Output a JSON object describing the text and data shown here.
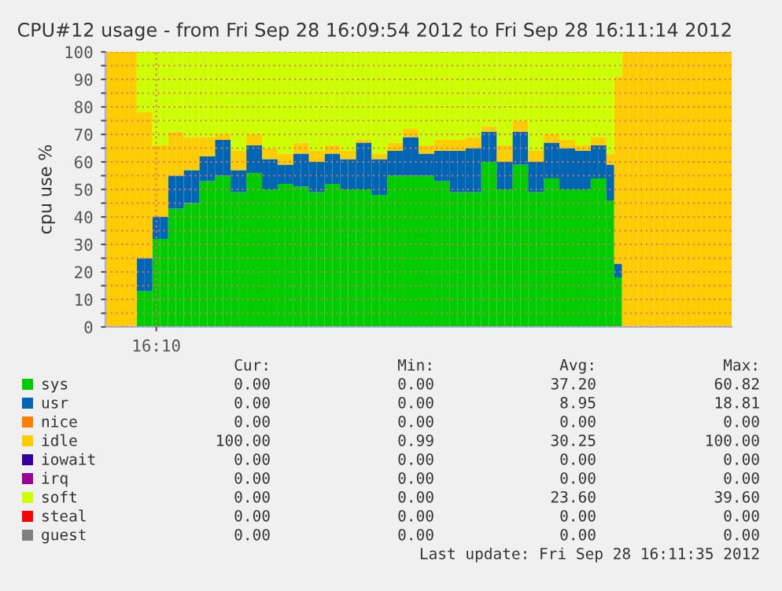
{
  "chart_data": {
    "type": "bar",
    "stacked": true,
    "title": "CPU#12 usage - from Fri Sep 28 16:09:54 2012 to Fri Sep 28 16:11:14 2012",
    "ylabel": "cpu use %",
    "categories": [
      null,
      null,
      null,
      null,
      null,
      null,
      "16:10",
      null,
      null,
      null,
      null,
      null,
      null,
      null,
      null,
      null,
      null,
      null,
      null,
      null,
      null,
      null,
      null,
      null,
      null,
      null,
      null,
      null,
      null,
      null,
      null,
      null,
      null,
      null,
      null,
      null,
      null,
      null,
      null,
      null,
      null,
      null,
      null,
      null,
      null,
      null,
      null,
      null,
      null,
      null,
      null,
      null,
      null,
      null,
      null,
      null,
      null,
      null,
      null,
      null,
      null,
      null,
      null,
      null,
      null,
      null,
      null,
      null,
      null,
      null,
      null,
      null,
      null,
      null,
      null,
      null,
      null,
      null,
      null,
      null
    ],
    "series": [
      {
        "name": "sys",
        "color": "#00cc00",
        "values": [
          0,
          0,
          0,
          0,
          13,
          13,
          32,
          32,
          43,
          43,
          45,
          45,
          53,
          53,
          55,
          55,
          49,
          49,
          56,
          56,
          50,
          50,
          52,
          52,
          51,
          51,
          49,
          49,
          52,
          52,
          50,
          50,
          50,
          50,
          48,
          48,
          55,
          55,
          55,
          55,
          55,
          55,
          53,
          53,
          49,
          49,
          49,
          49,
          60,
          60,
          50,
          50,
          59,
          59,
          49,
          49,
          54,
          54,
          50,
          50,
          50,
          50,
          54,
          54,
          46,
          18,
          0,
          0,
          0,
          0,
          0,
          0,
          0,
          0,
          0,
          0,
          0,
          0,
          0,
          0
        ]
      },
      {
        "name": "usr",
        "color": "#0066b3",
        "values": [
          0,
          0,
          0,
          0,
          12,
          12,
          8,
          8,
          12,
          12,
          12,
          12,
          9,
          9,
          13,
          13,
          8,
          8,
          10,
          10,
          11,
          11,
          7,
          7,
          12,
          12,
          11,
          11,
          11,
          11,
          11,
          11,
          17,
          17,
          13,
          13,
          9,
          9,
          14,
          14,
          8,
          8,
          11,
          11,
          15,
          15,
          16,
          16,
          11,
          11,
          10,
          10,
          12,
          12,
          11,
          11,
          13,
          13,
          15,
          15,
          14,
          14,
          12,
          12,
          13,
          5,
          0,
          0,
          0,
          0,
          0,
          0,
          0,
          0,
          0,
          0,
          0,
          0,
          0,
          0
        ]
      },
      {
        "name": "nice",
        "color": "#ff8000",
        "values": [
          0,
          0,
          0,
          0,
          0,
          0,
          0,
          0,
          0,
          0,
          0,
          0,
          0,
          0,
          0,
          0,
          0,
          0,
          0,
          0,
          0,
          0,
          0,
          0,
          0,
          0,
          0,
          0,
          0,
          0,
          0,
          0,
          0,
          0,
          0,
          0,
          0,
          0,
          0,
          0,
          0,
          0,
          0,
          0,
          0,
          0,
          0,
          0,
          0,
          0,
          0,
          0,
          0,
          0,
          0,
          0,
          0,
          0,
          0,
          0,
          0,
          0,
          0,
          0,
          0,
          0,
          0,
          0,
          0,
          0,
          0,
          0,
          0,
          0,
          0,
          0,
          0,
          0,
          0,
          0
        ]
      },
      {
        "name": "idle",
        "color": "#ffcc00",
        "values": [
          100,
          100,
          100,
          100,
          53,
          53,
          26,
          26,
          16,
          16,
          12,
          12,
          7,
          7,
          2,
          2,
          7,
          7,
          4,
          4,
          4,
          4,
          4,
          4,
          4,
          4,
          4,
          4,
          3,
          3,
          3,
          3,
          1,
          1,
          2,
          2,
          3,
          3,
          3,
          3,
          3,
          3,
          4,
          4,
          4,
          4,
          4,
          4,
          2,
          2,
          6,
          6,
          4,
          4,
          4,
          4,
          3,
          3,
          3,
          3,
          2,
          2,
          3,
          3,
          4,
          68,
          100,
          100,
          100,
          100,
          100,
          100,
          100,
          100,
          100,
          100,
          100,
          100,
          100,
          100
        ]
      },
      {
        "name": "iowait",
        "color": "#330099",
        "values": [
          0,
          0,
          0,
          0,
          0,
          0,
          0,
          0,
          0,
          0,
          0,
          0,
          0,
          0,
          0,
          0,
          0,
          0,
          0,
          0,
          0,
          0,
          0,
          0,
          0,
          0,
          0,
          0,
          0,
          0,
          0,
          0,
          0,
          0,
          0,
          0,
          0,
          0,
          0,
          0,
          0,
          0,
          0,
          0,
          0,
          0,
          0,
          0,
          0,
          0,
          0,
          0,
          0,
          0,
          0,
          0,
          0,
          0,
          0,
          0,
          0,
          0,
          0,
          0,
          0,
          0,
          0,
          0,
          0,
          0,
          0,
          0,
          0,
          0,
          0,
          0,
          0,
          0,
          0,
          0
        ]
      },
      {
        "name": "irq",
        "color": "#990099",
        "values": [
          0,
          0,
          0,
          0,
          0,
          0,
          0,
          0,
          0,
          0,
          0,
          0,
          0,
          0,
          0,
          0,
          0,
          0,
          0,
          0,
          0,
          0,
          0,
          0,
          0,
          0,
          0,
          0,
          0,
          0,
          0,
          0,
          0,
          0,
          0,
          0,
          0,
          0,
          0,
          0,
          0,
          0,
          0,
          0,
          0,
          0,
          0,
          0,
          0,
          0,
          0,
          0,
          0,
          0,
          0,
          0,
          0,
          0,
          0,
          0,
          0,
          0,
          0,
          0,
          0,
          0,
          0,
          0,
          0,
          0,
          0,
          0,
          0,
          0,
          0,
          0,
          0,
          0,
          0,
          0
        ]
      },
      {
        "name": "soft",
        "color": "#ccff00",
        "values": [
          0,
          0,
          0,
          0,
          22,
          22,
          34,
          34,
          29,
          29,
          31,
          31,
          31,
          31,
          30,
          30,
          36,
          36,
          30,
          30,
          35,
          35,
          37,
          37,
          33,
          33,
          36,
          36,
          34,
          34,
          36,
          36,
          32,
          32,
          37,
          37,
          33,
          33,
          28,
          28,
          34,
          34,
          32,
          32,
          32,
          32,
          31,
          31,
          27,
          27,
          34,
          34,
          25,
          25,
          36,
          36,
          30,
          30,
          32,
          32,
          34,
          34,
          31,
          31,
          37,
          9,
          0,
          0,
          0,
          0,
          0,
          0,
          0,
          0,
          0,
          0,
          0,
          0,
          0,
          0
        ]
      },
      {
        "name": "steal",
        "color": "#ff0000",
        "values": [
          0,
          0,
          0,
          0,
          0,
          0,
          0,
          0,
          0,
          0,
          0,
          0,
          0,
          0,
          0,
          0,
          0,
          0,
          0,
          0,
          0,
          0,
          0,
          0,
          0,
          0,
          0,
          0,
          0,
          0,
          0,
          0,
          0,
          0,
          0,
          0,
          0,
          0,
          0,
          0,
          0,
          0,
          0,
          0,
          0,
          0,
          0,
          0,
          0,
          0,
          0,
          0,
          0,
          0,
          0,
          0,
          0,
          0,
          0,
          0,
          0,
          0,
          0,
          0,
          0,
          0,
          0,
          0,
          0,
          0,
          0,
          0,
          0,
          0,
          0,
          0,
          0,
          0,
          0,
          0
        ]
      },
      {
        "name": "guest",
        "color": "#808080",
        "values": [
          0,
          0,
          0,
          0,
          0,
          0,
          0,
          0,
          0,
          0,
          0,
          0,
          0,
          0,
          0,
          0,
          0,
          0,
          0,
          0,
          0,
          0,
          0,
          0,
          0,
          0,
          0,
          0,
          0,
          0,
          0,
          0,
          0,
          0,
          0,
          0,
          0,
          0,
          0,
          0,
          0,
          0,
          0,
          0,
          0,
          0,
          0,
          0,
          0,
          0,
          0,
          0,
          0,
          0,
          0,
          0,
          0,
          0,
          0,
          0,
          0,
          0,
          0,
          0,
          0,
          0,
          0,
          0,
          0,
          0,
          0,
          0,
          0,
          0,
          0,
          0,
          0,
          0,
          0,
          0
        ]
      }
    ],
    "ylim": [
      0,
      100
    ],
    "yticks": [
      0,
      {
        "value": 5,
        "label": null
      },
      10,
      {
        "value": 15,
        "label": null
      },
      20,
      {
        "value": 25,
        "label": null
      },
      30,
      {
        "value": 35,
        "label": null
      },
      40,
      {
        "value": 45,
        "label": null
      },
      50,
      {
        "value": 55,
        "label": null
      },
      60,
      {
        "value": 65,
        "label": null
      },
      70,
      {
        "value": 75,
        "label": null
      },
      80,
      {
        "value": 85,
        "label": null
      },
      90,
      {
        "value": 95,
        "label": null
      },
      100
    ],
    "grid": true,
    "legend": "bottom",
    "annotations": [
      "Cur:",
      "Min:",
      "Avg:",
      "Max:",
      "0.00",
      "0.00",
      "37.20",
      "60.82",
      "0.00",
      "0.00",
      "8.95",
      "18.81",
      "0.00",
      "0.00",
      "0.00",
      "0.00",
      "100.00",
      "0.99",
      "30.25",
      "100.00",
      "0.00",
      "0.00",
      "0.00",
      "0.00",
      "0.00",
      "0.00",
      "0.00",
      "0.00",
      "0.00",
      "0.00",
      "23.60",
      "39.60",
      "0.00",
      "0.00",
      "0.00",
      "0.00",
      "0.00",
      "0.00",
      "0.00",
      "0.00",
      "Last update: Fri Sep 28 16:11:35 2012"
    ]
  }
}
